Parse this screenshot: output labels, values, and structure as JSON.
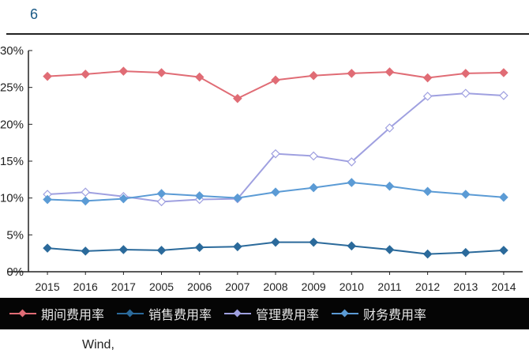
{
  "page": {
    "figure_number": "6",
    "source": "Wind,"
  },
  "chart_data": {
    "type": "line",
    "y_tick_labels": [
      "30%",
      "25%",
      "20%",
      "15%",
      "10%",
      "5%",
      "0%"
    ],
    "ylim": [
      0,
      30
    ],
    "categories": [
      "2005",
      "2006",
      "2007",
      "2008",
      "2009",
      "2010",
      "2011",
      "2012",
      "2013",
      "2014",
      "2015",
      "2016",
      "2017"
    ],
    "x_tick_labels": [
      "2015",
      "2016",
      "2017",
      "2005",
      "2006",
      "2007",
      "2008",
      "2009",
      "2010",
      "2011",
      "2012",
      "2013",
      "2014"
    ],
    "grid": false,
    "legend_placement": "bottom",
    "series": [
      {
        "name": "期间费用率",
        "color": "#e06c75",
        "values": [
          26.5,
          26.8,
          27.2,
          27.0,
          26.4,
          23.5,
          26.0,
          26.6,
          26.9,
          27.1,
          26.3,
          26.9,
          27.0
        ]
      },
      {
        "name": "销售费用率",
        "color": "#2b6a9b",
        "values": [
          3.2,
          2.8,
          3.0,
          2.9,
          3.3,
          3.4,
          4.0,
          4.0,
          3.5,
          3.0,
          2.4,
          2.6,
          2.9
        ]
      },
      {
        "name": "管理费用率",
        "color": "#9fa0e0",
        "values": [
          10.5,
          10.8,
          10.2,
          9.5,
          9.8,
          9.9,
          16.0,
          15.7,
          14.9,
          19.5,
          23.8,
          24.2,
          23.9
        ]
      },
      {
        "name": "财务费用率",
        "color": "#5b9bd5",
        "values": [
          9.8,
          9.6,
          9.9,
          10.6,
          10.3,
          10.0,
          10.8,
          11.4,
          12.1,
          11.6,
          10.9,
          10.5,
          10.1
        ]
      }
    ]
  },
  "colors": {
    "accent": "#1a5a86",
    "green_marks": "#5a8a1e"
  }
}
